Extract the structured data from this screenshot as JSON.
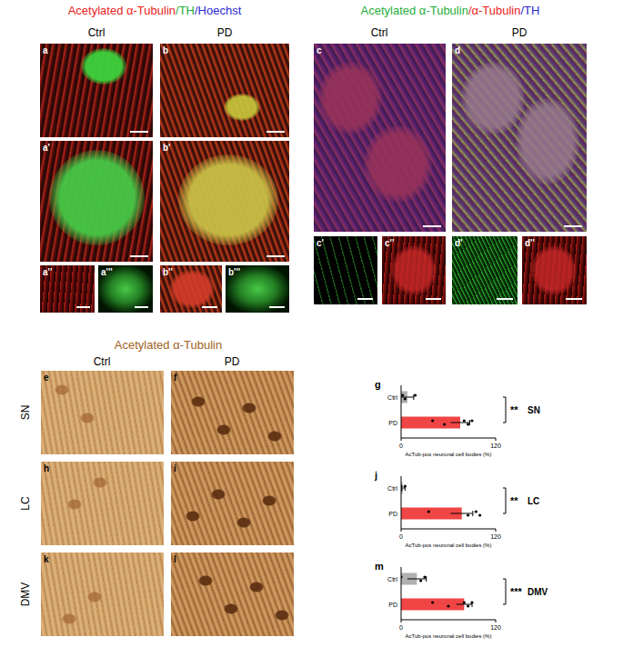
{
  "figure": {
    "top_left": {
      "title": [
        {
          "text": "Acetylated α-Tubulin",
          "color": "#e8231c"
        },
        {
          "text": "/TH",
          "color": "#1fae3a"
        },
        {
          "text": "/Hoechst",
          "color": "#2a2ad0"
        }
      ],
      "columns": [
        "Ctrl",
        "PD"
      ],
      "panels": [
        "a",
        "b",
        "a'",
        "b'",
        "a''",
        "a'''",
        "b''",
        "b'''"
      ]
    },
    "top_right": {
      "title": [
        {
          "text": "Acetylated α-Tubulin",
          "color": "#1fae3a"
        },
        {
          "text": "/α-Tubulin",
          "color": "#e8231c"
        },
        {
          "text": "/TH",
          "color": "#2a2ad0"
        }
      ],
      "columns": [
        "Ctrl",
        "PD"
      ],
      "panels": [
        "c",
        "d",
        "c'",
        "c''",
        "d'",
        "d''"
      ]
    },
    "bottom": {
      "title": {
        "text": "Acetylated α-Tubulin",
        "color": "#a0621e"
      },
      "columns": [
        "Ctrl",
        "PD"
      ],
      "rows": [
        "SN",
        "LC",
        "DMV"
      ],
      "panels": [
        "e",
        "f",
        "h",
        "i",
        "k",
        "l"
      ]
    }
  },
  "chart_data": [
    {
      "type": "bar",
      "panel": "g",
      "orientation": "horizontal",
      "categories": [
        "Ctrl",
        "PD"
      ],
      "values": [
        8,
        75
      ],
      "errors": [
        8,
        12
      ],
      "points": [
        [
          2,
          5,
          18
        ],
        [
          40,
          55,
          80,
          85,
          90
        ]
      ],
      "colors": [
        "#b0b0b0",
        "#f04545"
      ],
      "xlim": [
        0,
        120
      ],
      "xticks": [
        0,
        120
      ],
      "x_label": "AcTub-pos neuronal cell bodies (%)",
      "annotations": [
        "**",
        "SN"
      ]
    },
    {
      "type": "bar",
      "panel": "j",
      "orientation": "horizontal",
      "categories": [
        "Ctrl",
        "PD"
      ],
      "values": [
        2,
        77
      ],
      "errors": [
        3,
        14
      ],
      "points": [
        [
          0,
          0,
          5
        ],
        [
          35,
          85,
          95,
          100
        ]
      ],
      "colors": [
        "#b0b0b0",
        "#f04545"
      ],
      "xlim": [
        0,
        120
      ],
      "xticks": [
        0,
        120
      ],
      "x_label": "AcTub-pos neuronal cell bodies (%)",
      "annotations": [
        "**",
        "LC"
      ]
    },
    {
      "type": "bar",
      "panel": "m",
      "orientation": "horizontal",
      "categories": [
        "Ctrl",
        "PD"
      ],
      "values": [
        20,
        80
      ],
      "errors": [
        12,
        10
      ],
      "points": [
        [
          0,
          25,
          30
        ],
        [
          40,
          60,
          80,
          85,
          90
        ]
      ],
      "colors": [
        "#b0b0b0",
        "#f04545"
      ],
      "xlim": [
        0,
        120
      ],
      "xticks": [
        0,
        120
      ],
      "x_label": "AcTub-pos neuronal cell bodies (%)",
      "annotations": [
        "***",
        "DMV"
      ]
    }
  ]
}
